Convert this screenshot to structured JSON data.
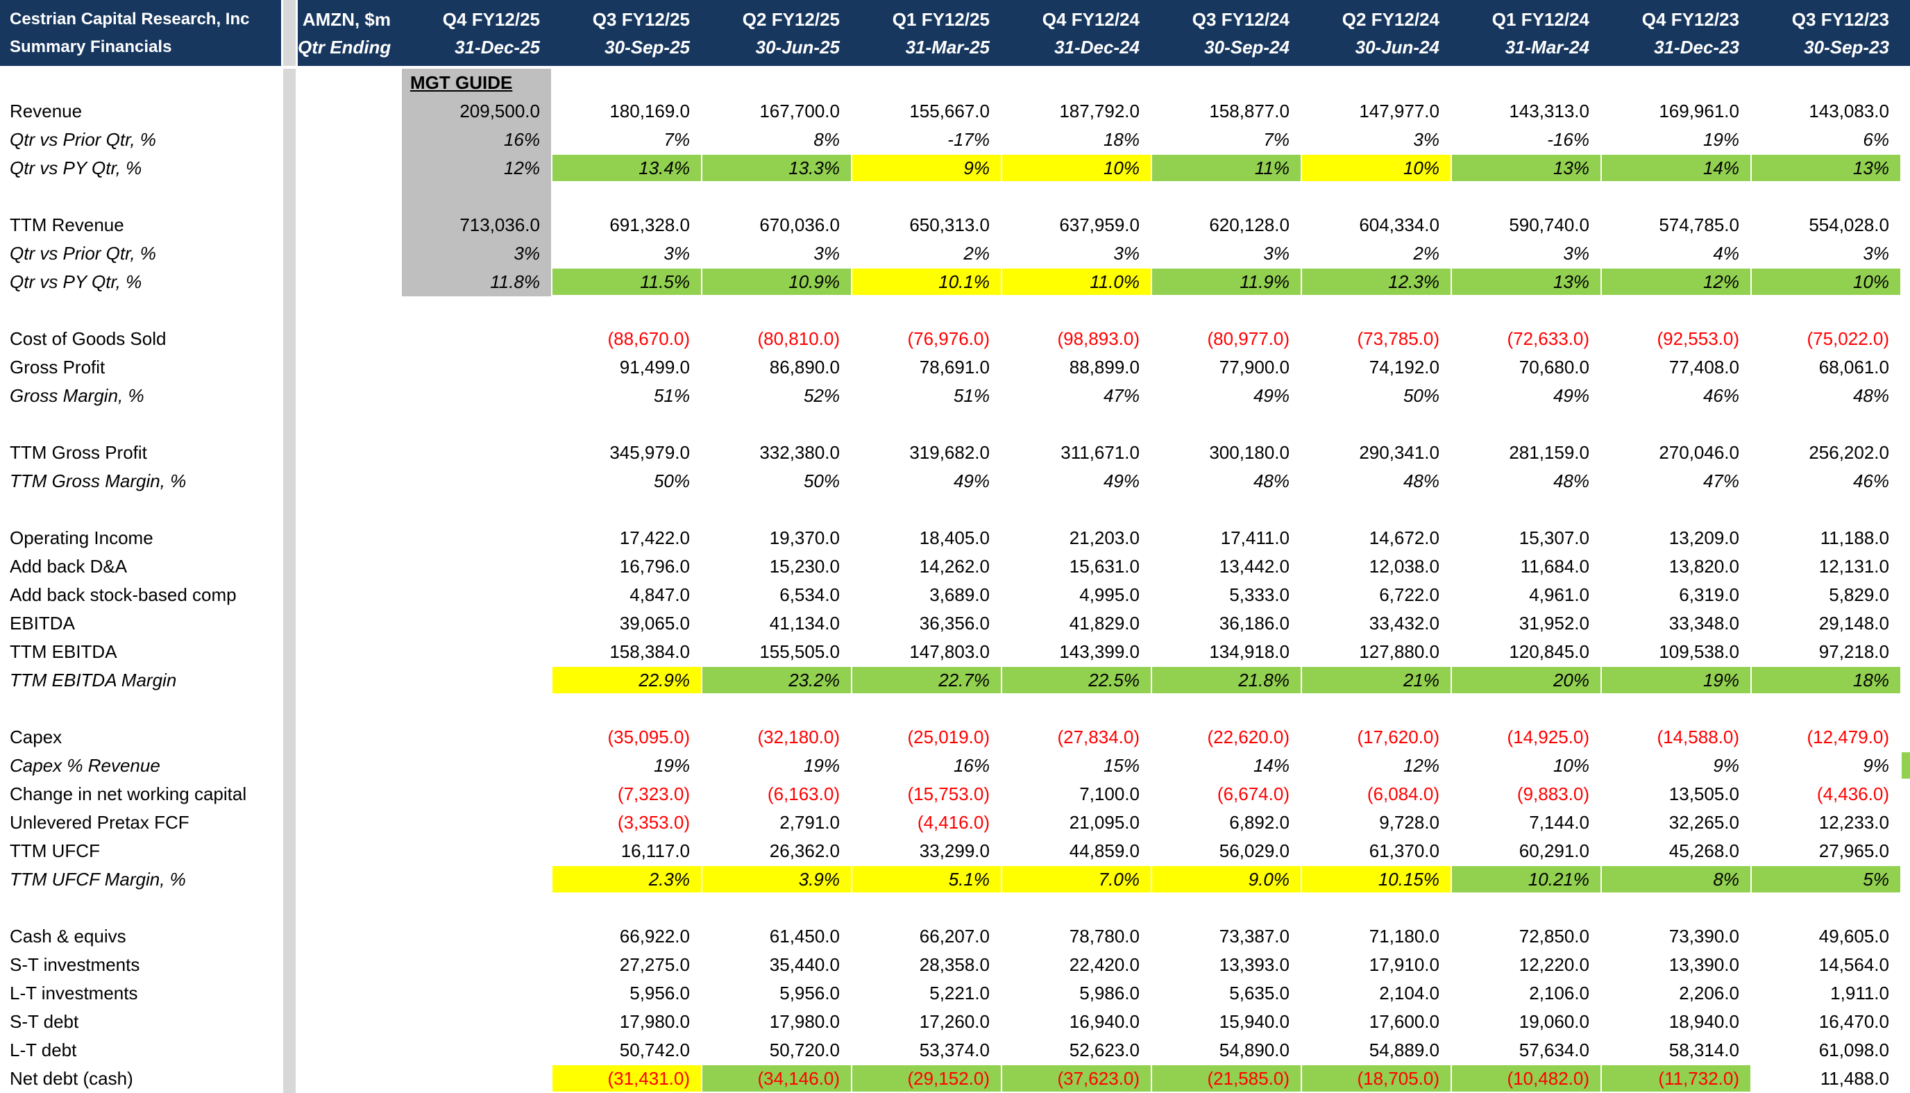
{
  "header": {
    "title_line1": "Cestrian Capital Research, Inc",
    "title_line2": "Summary Financials",
    "ticker_line1": "AMZN, $m",
    "ticker_line2": "Qtr Ending",
    "columns": [
      {
        "q": "Q4 FY12/25",
        "d": "31-Dec-25"
      },
      {
        "q": "Q3 FY12/25",
        "d": "30-Sep-25"
      },
      {
        "q": "Q2 FY12/25",
        "d": "30-Jun-25"
      },
      {
        "q": "Q1 FY12/25",
        "d": "31-Mar-25"
      },
      {
        "q": "Q4 FY12/24",
        "d": "31-Dec-24"
      },
      {
        "q": "Q3 FY12/24",
        "d": "30-Sep-24"
      },
      {
        "q": "Q2 FY12/24",
        "d": "30-Jun-24"
      },
      {
        "q": "Q1 FY12/24",
        "d": "31-Mar-24"
      },
      {
        "q": "Q4 FY12/23",
        "d": "31-Dec-23"
      },
      {
        "q": "Q3 FY12/23",
        "d": "30-Sep-23"
      }
    ]
  },
  "colors": {
    "header_bg": "#17375E",
    "highlight_green": "#92D050",
    "highlight_yellow": "#FFFF00",
    "negative_red": "#FF0000",
    "guide_column_gray": "#BFBFBF",
    "spacer_column_gray": "#D8D8D8"
  },
  "rows": [
    {
      "label": "",
      "guide": "MGT GUIDE",
      "guide_title": true,
      "guide_gray": 1,
      "cells": []
    },
    {
      "label": "Revenue",
      "guide": "209,500.0",
      "guide_gray": 1,
      "cells": [
        "180,169.0",
        "167,700.0",
        "155,667.0",
        "187,792.0",
        "158,877.0",
        "147,977.0",
        "143,313.0",
        "169,961.0",
        "143,083.0"
      ]
    },
    {
      "label": "Qtr vs Prior Qtr, %",
      "italic": 1,
      "guide": "16%",
      "guide_gray": 1,
      "cells": [
        "7%",
        "8%",
        "-17%",
        "18%",
        "7%",
        "3%",
        "-16%",
        "19%",
        "6%"
      ]
    },
    {
      "label": "Qtr vs PY Qtr, %",
      "italic": 1,
      "guide": "12%",
      "guide_gray": 1,
      "cells": [
        "13.4%",
        "13.3%",
        "9%",
        "10%",
        "11%",
        "10%",
        "13%",
        "14%",
        "13%"
      ],
      "bg": [
        "g",
        "g",
        "y",
        "y",
        "g",
        "y",
        "g",
        "g",
        "g"
      ]
    },
    {
      "label": "",
      "guide": "",
      "guide_gray": 1,
      "cells": []
    },
    {
      "label": "TTM Revenue",
      "guide": "713,036.0",
      "guide_gray": 1,
      "cells": [
        "691,328.0",
        "670,036.0",
        "650,313.0",
        "637,959.0",
        "620,128.0",
        "604,334.0",
        "590,740.0",
        "574,785.0",
        "554,028.0"
      ]
    },
    {
      "label": "Qtr vs Prior Qtr, %",
      "italic": 1,
      "guide": "3%",
      "guide_gray": 1,
      "cells": [
        "3%",
        "3%",
        "2%",
        "3%",
        "3%",
        "2%",
        "3%",
        "4%",
        "3%"
      ]
    },
    {
      "label": "Qtr vs PY Qtr, %",
      "italic": 1,
      "guide": "11.8%",
      "guide_gray": 1,
      "cells": [
        "11.5%",
        "10.9%",
        "10.1%",
        "11.0%",
        "11.9%",
        "12.3%",
        "13%",
        "12%",
        "10%"
      ],
      "bg": [
        "g",
        "g",
        "y",
        "y",
        "g",
        "g",
        "g",
        "g",
        "g"
      ]
    },
    {
      "label": "",
      "cells": []
    },
    {
      "label": "Cost of Goods Sold",
      "cells": [
        "(88,670.0)",
        "(80,810.0)",
        "(76,976.0)",
        "(98,893.0)",
        "(80,977.0)",
        "(73,785.0)",
        "(72,633.0)",
        "(92,553.0)",
        "(75,022.0)"
      ],
      "neg": [
        1,
        1,
        1,
        1,
        1,
        1,
        1,
        1,
        1
      ]
    },
    {
      "label": "Gross Profit",
      "cells": [
        "91,499.0",
        "86,890.0",
        "78,691.0",
        "88,899.0",
        "77,900.0",
        "74,192.0",
        "70,680.0",
        "77,408.0",
        "68,061.0"
      ]
    },
    {
      "label": "Gross Margin, %",
      "italic": 1,
      "cells": [
        "51%",
        "52%",
        "51%",
        "47%",
        "49%",
        "50%",
        "49%",
        "46%",
        "48%"
      ]
    },
    {
      "label": "",
      "cells": []
    },
    {
      "label": "TTM Gross Profit",
      "cells": [
        "345,979.0",
        "332,380.0",
        "319,682.0",
        "311,671.0",
        "300,180.0",
        "290,341.0",
        "281,159.0",
        "270,046.0",
        "256,202.0"
      ]
    },
    {
      "label": "TTM Gross Margin, %",
      "italic": 1,
      "cells": [
        "50%",
        "50%",
        "49%",
        "49%",
        "48%",
        "48%",
        "48%",
        "47%",
        "46%"
      ]
    },
    {
      "label": "",
      "cells": []
    },
    {
      "label": "Operating Income",
      "cells": [
        "17,422.0",
        "19,370.0",
        "18,405.0",
        "21,203.0",
        "17,411.0",
        "14,672.0",
        "15,307.0",
        "13,209.0",
        "11,188.0"
      ]
    },
    {
      "label": "Add back D&A",
      "cells": [
        "16,796.0",
        "15,230.0",
        "14,262.0",
        "15,631.0",
        "13,442.0",
        "12,038.0",
        "11,684.0",
        "13,820.0",
        "12,131.0"
      ]
    },
    {
      "label": "Add back stock-based comp",
      "cells": [
        "4,847.0",
        "6,534.0",
        "3,689.0",
        "4,995.0",
        "5,333.0",
        "6,722.0",
        "4,961.0",
        "6,319.0",
        "5,829.0"
      ]
    },
    {
      "label": "EBITDA",
      "cells": [
        "39,065.0",
        "41,134.0",
        "36,356.0",
        "41,829.0",
        "36,186.0",
        "33,432.0",
        "31,952.0",
        "33,348.0",
        "29,148.0"
      ]
    },
    {
      "label": "TTM EBITDA",
      "cells": [
        "158,384.0",
        "155,505.0",
        "147,803.0",
        "143,399.0",
        "134,918.0",
        "127,880.0",
        "120,845.0",
        "109,538.0",
        "97,218.0"
      ]
    },
    {
      "label": "TTM EBITDA Margin",
      "italic": 1,
      "cells": [
        "22.9%",
        "23.2%",
        "22.7%",
        "22.5%",
        "21.8%",
        "21%",
        "20%",
        "19%",
        "18%"
      ],
      "bg": [
        "y",
        "g",
        "g",
        "g",
        "g",
        "g",
        "g",
        "g",
        "g"
      ]
    },
    {
      "label": "",
      "cells": []
    },
    {
      "label": "Capex",
      "cells": [
        "(35,095.0)",
        "(32,180.0)",
        "(25,019.0)",
        "(27,834.0)",
        "(22,620.0)",
        "(17,620.0)",
        "(14,925.0)",
        "(14,588.0)",
        "(12,479.0)"
      ],
      "neg": [
        1,
        1,
        1,
        1,
        1,
        1,
        1,
        1,
        1
      ]
    },
    {
      "label": "Capex % Revenue",
      "italic": 1,
      "cells": [
        "19%",
        "19%",
        "16%",
        "15%",
        "14%",
        "12%",
        "10%",
        "9%",
        "9%"
      ],
      "edge": "g"
    },
    {
      "label": "Change in net working capital",
      "cells": [
        "(7,323.0)",
        "(6,163.0)",
        "(15,753.0)",
        "7,100.0",
        "(6,674.0)",
        "(6,084.0)",
        "(9,883.0)",
        "13,505.0",
        "(4,436.0)"
      ],
      "neg": [
        1,
        1,
        1,
        0,
        1,
        1,
        1,
        0,
        1
      ]
    },
    {
      "label": "Unlevered Pretax FCF",
      "cells": [
        "(3,353.0)",
        "2,791.0",
        "(4,416.0)",
        "21,095.0",
        "6,892.0",
        "9,728.0",
        "7,144.0",
        "32,265.0",
        "12,233.0"
      ],
      "neg": [
        1,
        0,
        1,
        0,
        0,
        0,
        0,
        0,
        0
      ]
    },
    {
      "label": "TTM UFCF",
      "cells": [
        "16,117.0",
        "26,362.0",
        "33,299.0",
        "44,859.0",
        "56,029.0",
        "61,370.0",
        "60,291.0",
        "45,268.0",
        "27,965.0"
      ]
    },
    {
      "label": "TTM UFCF Margin, %",
      "italic": 1,
      "cells": [
        "2.3%",
        "3.9%",
        "5.1%",
        "7.0%",
        "9.0%",
        "10.15%",
        "10.21%",
        "8%",
        "5%"
      ],
      "bg": [
        "y",
        "y",
        "y",
        "y",
        "y",
        "y",
        "g",
        "g",
        "g"
      ]
    },
    {
      "label": "",
      "cells": []
    },
    {
      "label": "Cash & equivs",
      "cells": [
        "66,922.0",
        "61,450.0",
        "66,207.0",
        "78,780.0",
        "73,387.0",
        "71,180.0",
        "72,850.0",
        "73,390.0",
        "49,605.0"
      ]
    },
    {
      "label": "S-T investments",
      "cells": [
        "27,275.0",
        "35,440.0",
        "28,358.0",
        "22,420.0",
        "13,393.0",
        "17,910.0",
        "12,220.0",
        "13,390.0",
        "14,564.0"
      ]
    },
    {
      "label": "L-T investments",
      "cells": [
        "5,956.0",
        "5,956.0",
        "5,221.0",
        "5,986.0",
        "5,635.0",
        "2,104.0",
        "2,106.0",
        "2,206.0",
        "1,911.0"
      ]
    },
    {
      "label": "S-T debt",
      "cells": [
        "17,980.0",
        "17,980.0",
        "17,260.0",
        "16,940.0",
        "15,940.0",
        "17,600.0",
        "19,060.0",
        "18,940.0",
        "16,470.0"
      ]
    },
    {
      "label": "L-T debt",
      "cells": [
        "50,742.0",
        "50,720.0",
        "53,374.0",
        "52,623.0",
        "54,890.0",
        "54,889.0",
        "57,634.0",
        "58,314.0",
        "61,098.0"
      ]
    },
    {
      "label": "Net debt (cash)",
      "cells": [
        "(31,431.0)",
        "(34,146.0)",
        "(29,152.0)",
        "(37,623.0)",
        "(21,585.0)",
        "(18,705.0)",
        "(10,482.0)",
        "(11,732.0)",
        "11,488.0"
      ],
      "bg": [
        "y",
        "g",
        "g",
        "g",
        "g",
        "g",
        "g",
        "g",
        null
      ],
      "neg": [
        1,
        1,
        1,
        1,
        1,
        1,
        1,
        1,
        0
      ]
    }
  ]
}
